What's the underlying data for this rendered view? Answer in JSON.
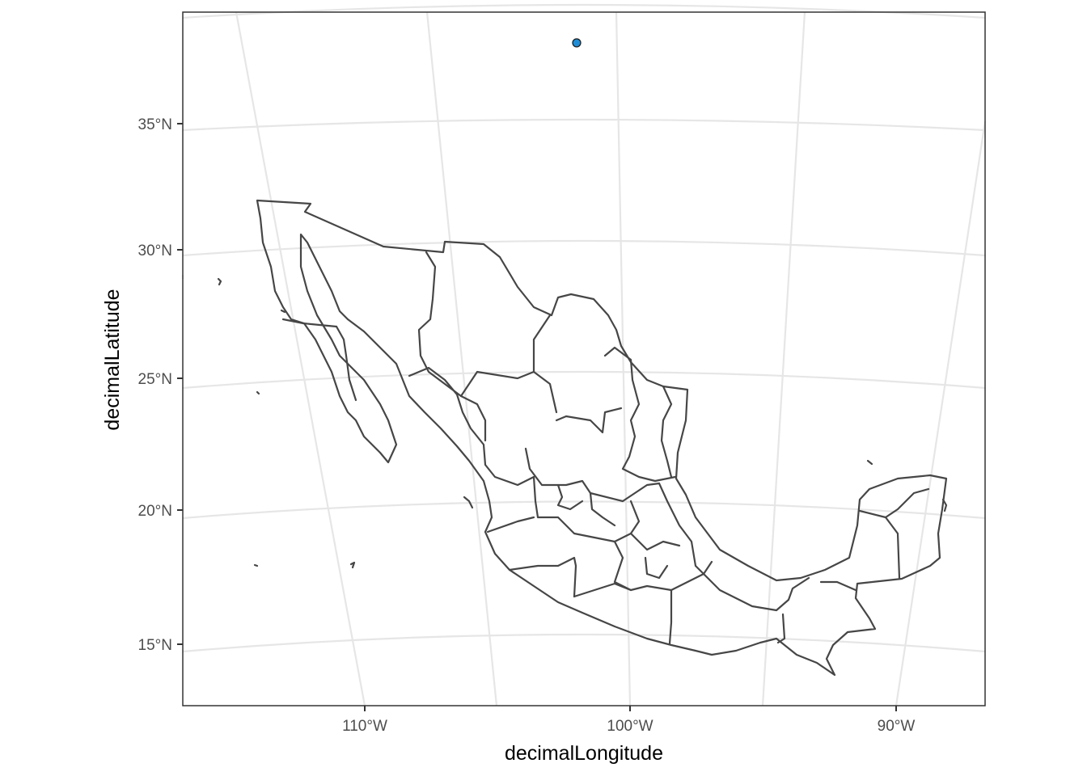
{
  "map": {
    "projection": "conic (curved graticule)",
    "x_axis": {
      "title": "decimalLongitude",
      "ticks": [
        {
          "value": -110,
          "label": "110°W"
        },
        {
          "value": -100,
          "label": "100°W"
        },
        {
          "value": -90,
          "label": "90°W"
        }
      ]
    },
    "y_axis": {
      "title": "decimalLatitude",
      "ticks": [
        {
          "value": 35,
          "label": "35°N"
        },
        {
          "value": 30,
          "label": "30°N"
        },
        {
          "value": 25,
          "label": "25°N"
        },
        {
          "value": 20,
          "label": "20°N"
        },
        {
          "value": 15,
          "label": "15°N"
        }
      ]
    },
    "region": "Mexico states",
    "points": [
      {
        "lon": -102.0,
        "lat": 38.0,
        "color": "#1f8dd6"
      }
    ],
    "colors": {
      "boundary": "#464646",
      "gridline": "#e6e6e6",
      "panel_border": "#333333",
      "point_fill": "#1f8dd6",
      "point_stroke": "#1a1a1a"
    }
  }
}
